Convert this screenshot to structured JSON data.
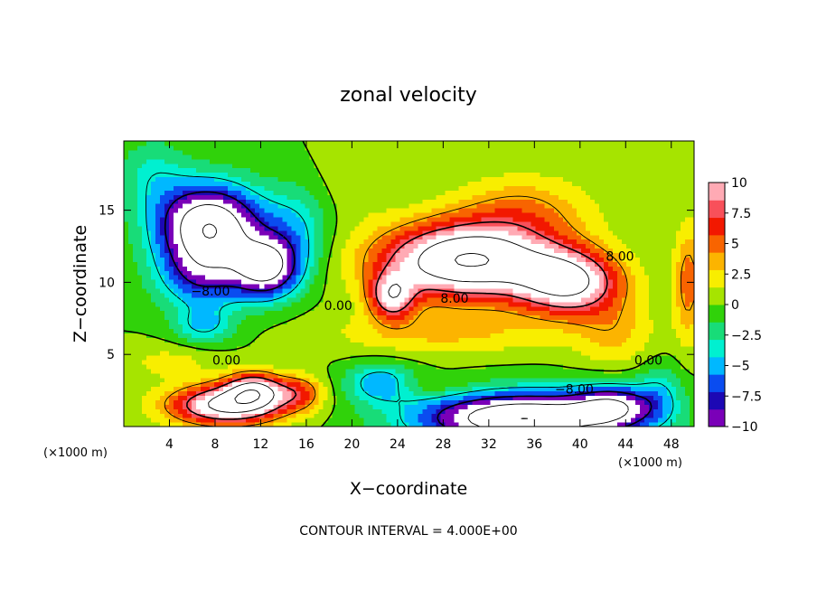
{
  "chart_data": {
    "type": "heatmap",
    "title": "zonal velocity",
    "xlabel": "X−coordinate",
    "ylabel": "Z−coordinate",
    "x_unit_label": "(×1000 m)",
    "y_unit_label": "(×1000 m)",
    "xlim": [
      0,
      50
    ],
    "ylim": [
      0,
      19.8
    ],
    "x_ticks": [
      4,
      8,
      12,
      16,
      20,
      24,
      28,
      32,
      36,
      40,
      44,
      48
    ],
    "x_tick_labels": [
      "4",
      "8",
      "12",
      "16",
      "20",
      "24",
      "28",
      "32",
      "36",
      "40",
      "44",
      "48"
    ],
    "y_ticks": [
      5,
      10,
      15
    ],
    "y_tick_labels": [
      "5",
      "10",
      "15"
    ],
    "colorbar": {
      "range": [
        -10,
        10
      ],
      "ticks": [
        10,
        7.5,
        5,
        2.5,
        0,
        -2.5,
        -5,
        -7.5,
        -10
      ],
      "tick_labels": [
        "10",
        "7.5",
        "5",
        "2.5",
        "0",
        "−2.5",
        "−5",
        "−7.5",
        "−10"
      ],
      "colors": [
        "#7a00b8",
        "#1c08b4",
        "#0a4cf0",
        "#00b8ff",
        "#00f0d0",
        "#18dc78",
        "#30d20a",
        "#a6e400",
        "#f8ee00",
        "#fcb400",
        "#f86400",
        "#f21800",
        "#f8505a",
        "#ffaab4"
      ]
    },
    "contour_interval": 4,
    "contour_labels": [
      {
        "text": "8.00",
        "x": 43.5,
        "y": 11.8
      },
      {
        "text": "8.00",
        "x": 29.0,
        "y": 8.9
      },
      {
        "text": "−8.00",
        "x": 7.6,
        "y": 9.4
      },
      {
        "text": "0.00",
        "x": 18.8,
        "y": 8.4
      },
      {
        "text": "0.00",
        "x": 9.0,
        "y": 4.6
      },
      {
        "text": "0.00",
        "x": 46.0,
        "y": 4.6
      },
      {
        "text": "−8.00",
        "x": 39.5,
        "y": 2.6
      }
    ],
    "field_features": [
      {
        "kind": "jet",
        "x": 30.0,
        "z": 11.5,
        "peak": 16,
        "sx": 7.5,
        "sz": 2.6
      },
      {
        "kind": "jet",
        "x": 39.0,
        "z": 10.0,
        "peak": 12,
        "sx": 4.5,
        "sz": 2.2
      },
      {
        "kind": "jet",
        "x": 23.5,
        "z": 9.0,
        "peak": 9,
        "sx": 2.0,
        "sz": 1.6
      },
      {
        "kind": "jet",
        "x": 35.0,
        "z": 15.0,
        "peak": 4,
        "sx": 6.0,
        "sz": 2.5
      },
      {
        "kind": "jet",
        "x": 9.0,
        "z": 1.5,
        "peak": 13,
        "sx": 5.0,
        "sz": 1.4
      },
      {
        "kind": "jet",
        "x": 11.5,
        "z": 2.6,
        "peak": 10,
        "sx": 2.5,
        "sz": 1.2
      },
      {
        "kind": "jet",
        "x": 15.5,
        "z": 2.4,
        "peak": 5,
        "sx": 2.0,
        "sz": 1.2
      },
      {
        "kind": "jet",
        "x": 43.0,
        "z": 6.5,
        "peak": 3,
        "sx": 3.5,
        "sz": 2.5
      },
      {
        "kind": "jet",
        "x": 20.0,
        "z": 17.0,
        "peak": 1,
        "sx": 3.0,
        "sz": 3.0
      },
      {
        "kind": "jet",
        "x": 49.5,
        "z": 10.0,
        "peak": 5,
        "sx": 1.3,
        "sz": 4.0
      },
      {
        "kind": "jet",
        "x": 4.0,
        "z": 4.5,
        "peak": 2,
        "sx": 4.0,
        "sz": 1.2
      },
      {
        "kind": "jet",
        "x": 28.0,
        "z": 6.5,
        "peak": 3,
        "sx": 10.0,
        "sz": 1.5
      },
      {
        "kind": "jet",
        "x": 26.0,
        "z": 2.8,
        "peak": 1.5,
        "sx": 5.0,
        "sz": 0.8
      },
      {
        "kind": "trough",
        "x": 7.5,
        "z": 14.0,
        "peak": -15,
        "sx": 4.5,
        "sz": 2.8
      },
      {
        "kind": "trough",
        "x": 12.5,
        "z": 11.0,
        "peak": -12,
        "sx": 2.8,
        "sz": 2.0
      },
      {
        "kind": "trough",
        "x": 7.0,
        "z": 10.5,
        "peak": -7,
        "sx": 4.0,
        "sz": 2.5
      },
      {
        "kind": "trough",
        "x": 15.0,
        "z": 13.5,
        "peak": -4,
        "sx": 3.0,
        "sz": 3.0
      },
      {
        "kind": "trough",
        "x": 2.5,
        "z": 17.5,
        "peak": -3,
        "sx": 3.0,
        "sz": 2.5
      },
      {
        "kind": "trough",
        "x": 35.0,
        "z": 0.6,
        "peak": -16,
        "sx": 9.0,
        "sz": 1.8
      },
      {
        "kind": "trough",
        "x": 22.5,
        "z": 3.0,
        "peak": -6,
        "sx": 3.0,
        "sz": 1.3
      },
      {
        "kind": "trough",
        "x": 43.0,
        "z": 1.5,
        "peak": -8,
        "sx": 3.5,
        "sz": 1.5
      },
      {
        "kind": "trough",
        "x": 7.0,
        "z": 7.0,
        "peak": -4,
        "sx": 2.5,
        "sz": 1.2
      },
      {
        "kind": "trough",
        "x": 47.0,
        "z": 2.5,
        "peak": -3,
        "sx": 2.0,
        "sz": 2.0
      }
    ],
    "legend": "colorbar-right",
    "grid": false
  },
  "footer": {
    "contour_interval_text": "CONTOUR INTERVAL = 4.000E+00"
  }
}
